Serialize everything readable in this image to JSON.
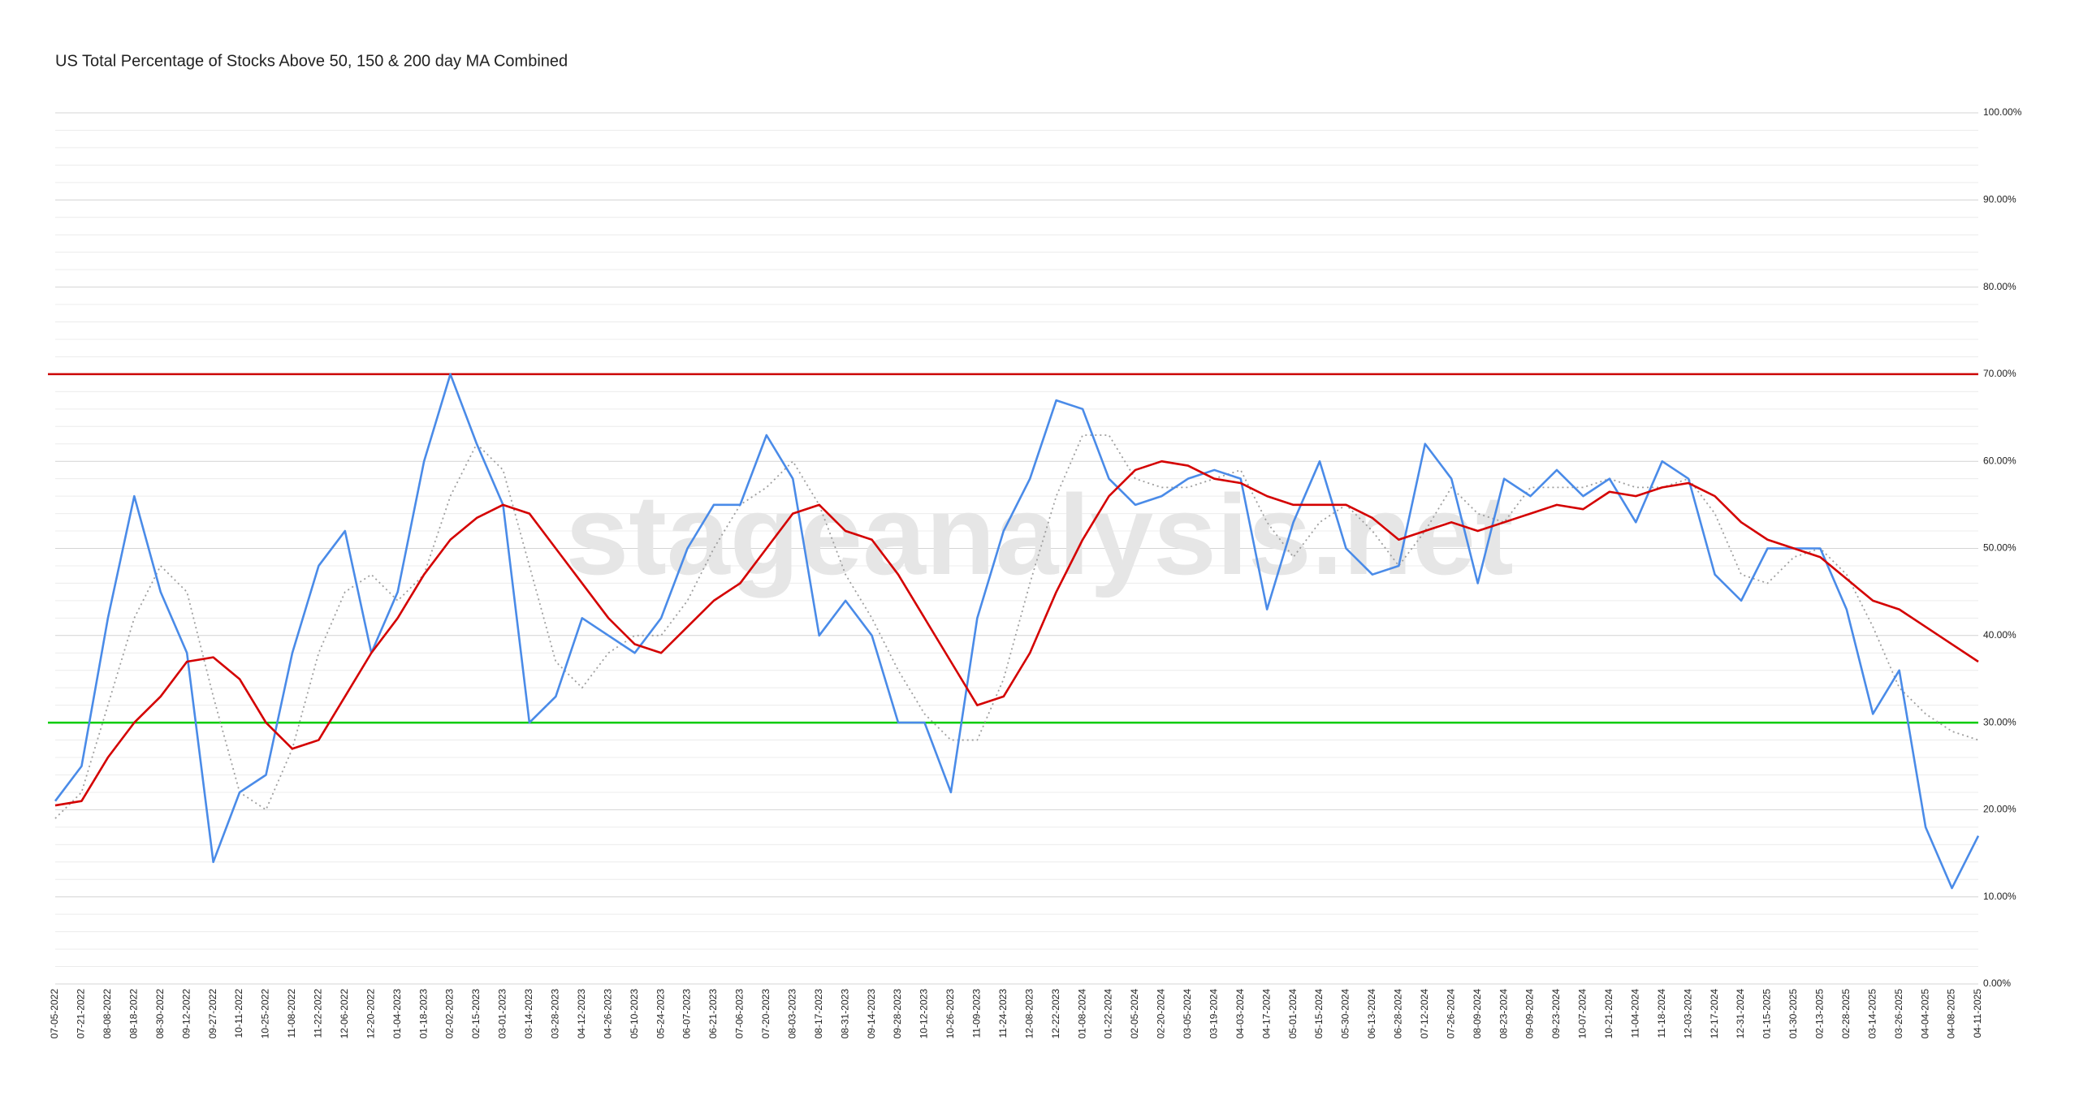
{
  "chart_data": {
    "type": "line",
    "title": "US Total Percentage of Stocks Above 50, 150 & 200 day MA Combined",
    "watermark": "stageanalysis.net",
    "categories": [
      "07-05-2022",
      "07-21-2022",
      "08-08-2022",
      "08-18-2022",
      "08-30-2022",
      "09-12-2022",
      "09-27-2022",
      "10-11-2022",
      "10-25-2022",
      "11-08-2022",
      "11-22-2022",
      "12-06-2022",
      "12-20-2022",
      "01-04-2023",
      "01-18-2023",
      "02-02-2023",
      "02-15-2023",
      "03-01-2023",
      "03-14-2023",
      "03-28-2023",
      "04-12-2023",
      "04-26-2023",
      "05-10-2023",
      "05-24-2023",
      "06-07-2023",
      "06-21-2023",
      "07-06-2023",
      "07-20-2023",
      "08-03-2023",
      "08-17-2023",
      "08-31-2023",
      "09-14-2023",
      "09-28-2023",
      "10-12-2023",
      "10-26-2023",
      "11-09-2023",
      "11-24-2023",
      "12-08-2023",
      "12-22-2023",
      "01-08-2024",
      "01-22-2024",
      "02-05-2024",
      "02-20-2024",
      "03-05-2024",
      "03-19-2024",
      "04-03-2024",
      "04-17-2024",
      "05-01-2024",
      "05-15-2024",
      "05-30-2024",
      "06-13-2024",
      "06-28-2024",
      "07-12-2024",
      "07-26-2024",
      "08-09-2024",
      "08-23-2024",
      "09-09-2024",
      "09-23-2024",
      "10-07-2024",
      "10-21-2024",
      "11-04-2024",
      "11-18-2024",
      "12-03-2024",
      "12-17-2024",
      "12-31-2024",
      "01-15-2025",
      "01-30-2025",
      "02-13-2025",
      "02-28-2025",
      "03-14-2025",
      "03-26-2025",
      "04-04-2025",
      "04-08-2025",
      "04-11-2025"
    ],
    "series": [
      {
        "color": "#9e9e9e",
        "dashed": true,
        "values": [
          19,
          22,
          32,
          42,
          48,
          45,
          33,
          22,
          20,
          27,
          38,
          45,
          47,
          44,
          47,
          56,
          62,
          59,
          48,
          37,
          34,
          38,
          40,
          40,
          44,
          50,
          55,
          57,
          60,
          55,
          47,
          42,
          36,
          31,
          28,
          28,
          35,
          46,
          56,
          63,
          63,
          58,
          57,
          57,
          58,
          59,
          53,
          49,
          53,
          55,
          52,
          48,
          52,
          57,
          54,
          53,
          57,
          57,
          57,
          58,
          57,
          57,
          58,
          54,
          47,
          46,
          49,
          50,
          47,
          41,
          34,
          31,
          29,
          28
        ]
      },
      {
        "color": "#4a8be8",
        "dashed": false,
        "values": [
          21,
          25,
          42,
          56,
          45,
          38,
          14,
          22,
          24,
          38,
          48,
          52,
          38,
          45,
          60,
          70,
          62,
          55,
          30,
          33,
          42,
          40,
          38,
          42,
          50,
          55,
          55,
          63,
          58,
          40,
          44,
          40,
          30,
          30,
          22,
          42,
          52,
          58,
          67,
          66,
          58,
          55,
          56,
          58,
          59,
          58,
          43,
          53,
          60,
          50,
          47,
          48,
          62,
          58,
          46,
          58,
          56,
          59,
          56,
          58,
          53,
          60,
          58,
          47,
          44,
          50,
          50,
          50,
          43,
          31,
          36,
          18,
          11,
          17
        ]
      },
      {
        "color": "#d40000",
        "dashed": false,
        "values": [
          20.5,
          21,
          26,
          30,
          33,
          37,
          37.5,
          35,
          30,
          27,
          28,
          33,
          38,
          42,
          47,
          51,
          53.5,
          55,
          54,
          50,
          46,
          42,
          39,
          38,
          41,
          44,
          46,
          50,
          54,
          55,
          52,
          51,
          47,
          42,
          37,
          32,
          33,
          38,
          45,
          51,
          56,
          59,
          60,
          59.5,
          58,
          57.5,
          56,
          55,
          55,
          55,
          53.5,
          51,
          52,
          53,
          52,
          53,
          54,
          55,
          54.5,
          56.5,
          56,
          57,
          57.5,
          56,
          53,
          51,
          50,
          49,
          46.5,
          44,
          43,
          41,
          39,
          37
        ]
      }
    ],
    "reference_lines": [
      {
        "value": 70,
        "color": "#cc0000"
      },
      {
        "value": 30,
        "color": "#00cc00"
      }
    ],
    "ylim": [
      0,
      100
    ],
    "yticks": [
      {
        "value": 0,
        "label": "0.00%"
      },
      {
        "value": 10,
        "label": "10.00%"
      },
      {
        "value": 20,
        "label": "20.00%"
      },
      {
        "value": 30,
        "label": "30.00%"
      },
      {
        "value": 40,
        "label": "40.00%"
      },
      {
        "value": 50,
        "label": "50.00%"
      },
      {
        "value": 60,
        "label": "60.00%"
      },
      {
        "value": 70,
        "label": "70.00%"
      },
      {
        "value": 80,
        "label": "80.00%"
      },
      {
        "value": 90,
        "label": "90.00%"
      },
      {
        "value": 100,
        "label": "100.00%"
      }
    ],
    "grid": true
  }
}
